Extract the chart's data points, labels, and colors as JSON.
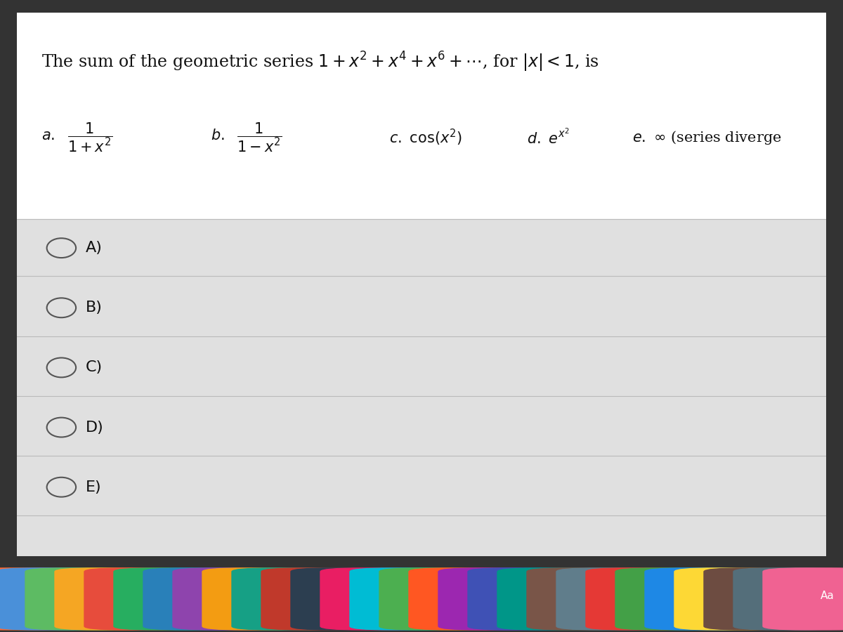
{
  "bg_color_top": "#e8e8e8",
  "bg_color_content": "#f0f0f0",
  "bg_color_white": "#ffffff",
  "line_color": "#cccccc",
  "text_color": "#1a1a1a",
  "question": "The sum of the geometric series 1 + x² + x⁴ + x⁶ + ⋯, for |x| < 1, is",
  "options": [
    "A)",
    "B)",
    "C)",
    "D)",
    "E)"
  ],
  "option_labels": [
    "a.  \\frac{1}{1+x^2}",
    "b.  \\frac{1}{1-x^2}",
    "c.  \\cos(x^2)",
    "d.  e^{x^2}",
    "e.  \\infty \\text{ (series diverge}"
  ],
  "dock_color": "#2c3e6b",
  "title_fontsize": 17,
  "option_fontsize": 15,
  "answer_fontsize": 16
}
